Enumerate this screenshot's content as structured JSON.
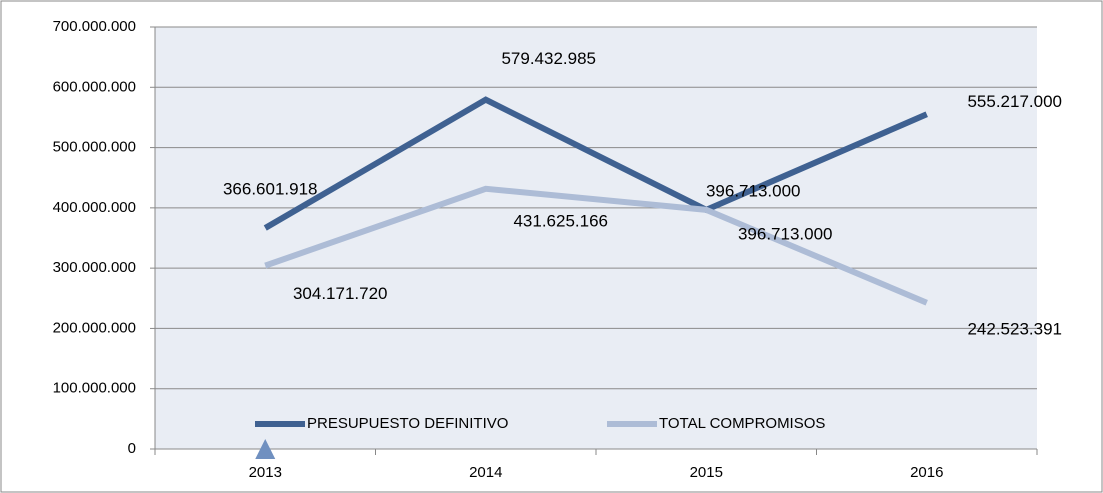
{
  "chart_data": {
    "type": "line",
    "categories": [
      "2013",
      "2014",
      "2015",
      "2016"
    ],
    "series": [
      {
        "name": "PRESUPUESTO DEFINITIVO",
        "color": "#3f6191",
        "values": [
          366601918,
          579432985,
          396713000,
          555217000
        ],
        "value_labels": [
          "366.601.918",
          "579.432.985",
          "396.713.000",
          "555.217.000"
        ]
      },
      {
        "name": "TOTAL COMPROMISOS",
        "color": "#adbcd6",
        "values": [
          304171720,
          431625166,
          396713000,
          242523391
        ],
        "value_labels": [
          "304.171.720",
          "431.625.166",
          "396.713.000",
          "242.523.391"
        ]
      }
    ],
    "ylim": [
      0,
      700000000
    ],
    "yticks": [
      0,
      {
        "value": 100000000,
        "label": "100.000.000"
      },
      {
        "value": 200000000,
        "label": "200.000.000"
      },
      {
        "value": 300000000,
        "label": "300.000.000"
      },
      {
        "value": 400000000,
        "label": "400.000.000"
      },
      {
        "value": 500000000,
        "label": "500.000.000"
      },
      {
        "value": 600000000,
        "label": "600.000.000"
      },
      {
        "value": 700000000,
        "label": "700.000.000"
      }
    ],
    "grid": true,
    "legend": "bottom"
  }
}
